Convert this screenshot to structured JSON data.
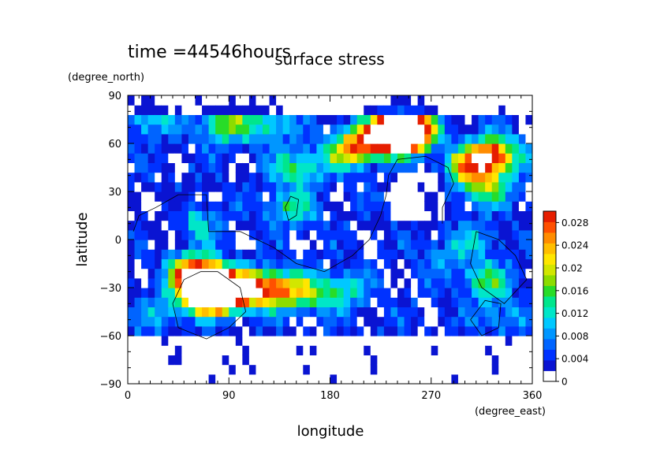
{
  "chart_data": {
    "type": "heatmap",
    "time_label": "time =44546hours",
    "title": "surface stress",
    "xlabel": "longitude",
    "ylabel": "latitude",
    "x_unit": "(degree_east)",
    "y_unit": "(degree_north)",
    "xlim": [
      0,
      360
    ],
    "ylim": [
      -90,
      90
    ],
    "x_ticks": [
      "0",
      "90",
      "180",
      "270",
      "360"
    ],
    "y_ticks": [
      "90",
      "60",
      "30",
      "0",
      "−30",
      "−60",
      "−90"
    ],
    "colorbar": {
      "range": [
        0,
        0.03
      ],
      "tick_labels": [
        "0",
        "0.004",
        "0.008",
        "0.012",
        "0.016",
        "0.02",
        "0.024",
        "0.028"
      ],
      "colors": [
        "#ffffff",
        "#0a14d2",
        "#0032ff",
        "#0064ff",
        "#0096ff",
        "#00c8ff",
        "#00e6c8",
        "#00e68c",
        "#28dc28",
        "#8cdc00",
        "#d2e600",
        "#ffe600",
        "#ffbe00",
        "#ff8c00",
        "#ff5000",
        "#e61e00"
      ]
    },
    "grid": false,
    "legend": "colorbar right",
    "features": [
      {
        "lon": 72,
        "lat": -34,
        "value": 0.032
      },
      {
        "lon": 60,
        "lat": -20,
        "value": 0.025
      },
      {
        "lon": 100,
        "lat": -32,
        "value": 0.018
      },
      {
        "lon": 125,
        "lat": -30,
        "value": 0.022
      },
      {
        "lon": 155,
        "lat": -33,
        "value": 0.014
      },
      {
        "lon": 190,
        "lat": -32,
        "value": 0.01
      },
      {
        "lon": 245,
        "lat": 67,
        "value": 0.032
      },
      {
        "lon": 215,
        "lat": 62,
        "value": 0.02
      },
      {
        "lon": 195,
        "lat": 55,
        "value": 0.014
      },
      {
        "lon": 325,
        "lat": 53,
        "value": 0.025
      },
      {
        "lon": 305,
        "lat": 45,
        "value": 0.018
      },
      {
        "lon": 320,
        "lat": 32,
        "value": 0.012
      },
      {
        "lon": 85,
        "lat": 72,
        "value": 0.014
      },
      {
        "lon": 125,
        "lat": 72,
        "value": 0.01
      },
      {
        "lon": 20,
        "lat": 75,
        "value": 0.008
      },
      {
        "lon": 150,
        "lat": 45,
        "value": 0.012
      },
      {
        "lon": 145,
        "lat": 20,
        "value": 0.01
      },
      {
        "lon": 320,
        "lat": -26,
        "value": 0.012
      },
      {
        "lon": 330,
        "lat": -48,
        "value": 0.006
      },
      {
        "lon": 310,
        "lat": 0,
        "value": 0.006
      },
      {
        "lon": 60,
        "lat": 10,
        "value": 0.008
      },
      {
        "lon": 280,
        "lat": -10,
        "value": 0.005
      },
      {
        "lon": 30,
        "lat": -45,
        "value": 0.006
      }
    ],
    "white_regions": [
      {
        "lon": 75,
        "lat": -30,
        "value": 0.04
      },
      {
        "lon": 245,
        "lat": 68,
        "value": 0.04
      }
    ]
  }
}
